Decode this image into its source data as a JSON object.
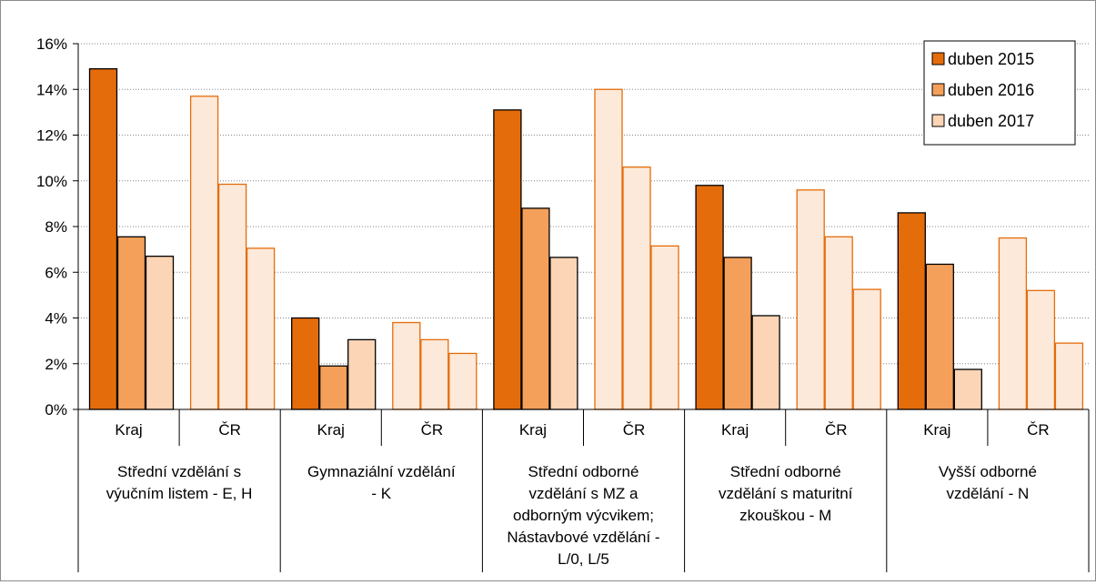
{
  "chart_data": {
    "type": "bar",
    "title": "",
    "xlabel": "",
    "ylabel": "",
    "ylim": [
      0,
      16
    ],
    "y_tick_format": "percent",
    "y_ticks": [
      "0%",
      "2%",
      "4%",
      "6%",
      "8%",
      "10%",
      "12%",
      "14%",
      "16%"
    ],
    "grid": "horizontal dotted",
    "legend_position": "top-right",
    "groups": [
      "Střední vzdělání s výučním listem - E, H",
      "Gymnaziální vzdělání - K",
      "Střední odborné vzdělání s MZ a odborným výcvikem; Nástavbové vzdělání - L/0, L/5",
      "Střední odborné vzdělání s maturitní zkouškou - M",
      "Vyšší odborné vzdělání - N"
    ],
    "group_label_lines": [
      [
        "Střední vzdělání s",
        "výučním listem - E, H"
      ],
      [
        "Gymnaziální vzdělání",
        "- K"
      ],
      [
        "Střední odborné",
        "vzdělání s MZ a",
        "odborným výcvikem;",
        "Nástavbové vzdělání -",
        "L/0, L/5"
      ],
      [
        "Střední odborné",
        "vzdělání s maturitní",
        "zkouškou - M"
      ],
      [
        "Vyšší odborné",
        "vzdělání - N"
      ]
    ],
    "subcategories": [
      "Kraj",
      "ČR"
    ],
    "series": [
      {
        "name": "duben 2015",
        "values": [
          [
            14.9,
            13.7
          ],
          [
            4.0,
            3.8
          ],
          [
            13.1,
            14.0
          ],
          [
            9.8,
            9.6
          ],
          [
            8.6,
            7.5
          ]
        ]
      },
      {
        "name": "duben 2016",
        "values": [
          [
            7.55,
            9.85
          ],
          [
            1.9,
            3.05
          ],
          [
            8.8,
            10.6
          ],
          [
            6.65,
            7.55
          ],
          [
            6.35,
            5.2
          ]
        ]
      },
      {
        "name": "duben 2017",
        "values": [
          [
            6.7,
            7.05
          ],
          [
            3.05,
            2.45
          ],
          [
            6.65,
            7.15
          ],
          [
            4.1,
            5.25
          ],
          [
            1.75,
            2.9
          ]
        ]
      }
    ],
    "colors": {
      "kraj_fills": [
        "#e46c0a",
        "#f5a05a",
        "#fbd5b5"
      ],
      "kraj_stroke": "#000000",
      "cr_fills": [
        "#fde9d9",
        "#fde9d9",
        "#fde9d9"
      ],
      "cr_stroke": "#e46c0a",
      "grid": "#868686",
      "axis": "#000000",
      "legend_border": "#000000"
    }
  }
}
